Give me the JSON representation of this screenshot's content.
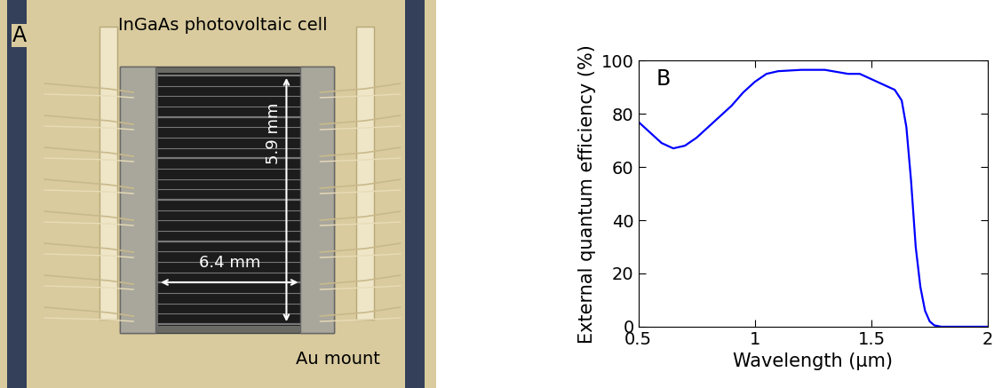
{
  "chart_data": {
    "type": "line",
    "annotations": [
      "B"
    ],
    "x_label": "Wavelength (μm)",
    "y_label": "External quantum efficiency (%)",
    "x": [
      0.5,
      0.55,
      0.6,
      0.65,
      0.7,
      0.75,
      0.8,
      0.85,
      0.9,
      0.95,
      1.0,
      1.05,
      1.1,
      1.2,
      1.3,
      1.4,
      1.45,
      1.5,
      1.55,
      1.6,
      1.63,
      1.65,
      1.67,
      1.69,
      1.71,
      1.73,
      1.75,
      1.77,
      1.8,
      1.9,
      2.0
    ],
    "values": [
      77,
      73,
      69,
      67,
      68,
      71,
      75,
      79,
      83,
      88,
      92,
      95,
      96,
      96.5,
      96.5,
      95,
      95,
      93,
      91,
      89,
      85,
      75,
      55,
      30,
      15,
      6,
      2,
      0.5,
      0,
      0,
      0
    ],
    "color": "#0000ff",
    "xlim": [
      0.5,
      2
    ],
    "xticks": [
      0.5,
      1,
      1.5,
      2
    ],
    "ylim": [
      0,
      100
    ],
    "yticks": [
      0,
      20,
      40,
      60,
      80,
      100
    ]
  },
  "image_panel": {
    "label": "A",
    "title": "InGaAs photovoltaic cell",
    "width": "6.4 mm",
    "height": "5.9 mm",
    "mount": "Au mount"
  }
}
